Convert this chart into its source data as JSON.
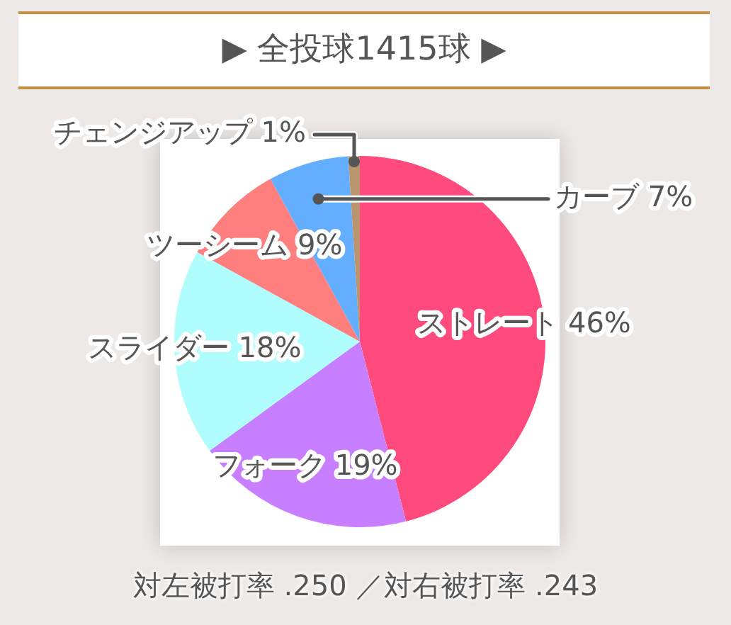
{
  "chart_data": {
    "type": "pie",
    "title": "▶ 全投球1415球 ▶",
    "categories": [
      "ストレート",
      "フォーク",
      "スライダー",
      "ツーシーム",
      "カーブ",
      "チェンジアップ"
    ],
    "values": [
      46,
      19,
      18,
      9,
      7,
      1
    ],
    "value_labels": [
      "46%",
      "19%",
      "18%",
      "9%",
      "7%",
      "1%"
    ],
    "colors": [
      "#ff4a7d",
      "#c87fff",
      "#b0fdfd",
      "#ff7f7f",
      "#63aeff",
      "#b9946c"
    ],
    "annotations": [
      "対左被打率 .250 ／対右被打率 .243"
    ]
  }
}
